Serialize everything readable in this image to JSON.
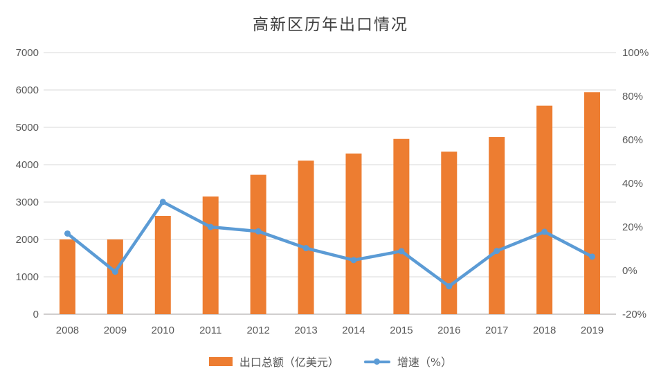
{
  "chart_data": {
    "type": "combo",
    "title": "高新区历年出口情况",
    "categories": [
      "2008",
      "2009",
      "2010",
      "2011",
      "2012",
      "2013",
      "2014",
      "2015",
      "2016",
      "2017",
      "2018",
      "2019"
    ],
    "series": [
      {
        "name": "出口总额（亿美元）",
        "type": "bar",
        "axis": "left",
        "color": "#ED7D31",
        "values": [
          2000,
          2000,
          2630,
          3150,
          3730,
          4110,
          4300,
          4690,
          4350,
          4740,
          5580,
          5940
        ]
      },
      {
        "name": "增速（%）",
        "type": "line",
        "axis": "right",
        "color": "#5B9BD5",
        "values": [
          17,
          -0.5,
          31.5,
          20,
          18,
          10.3,
          4.8,
          8.9,
          -7.2,
          9,
          17.8,
          6.4
        ]
      }
    ],
    "left_axis": {
      "min": 0,
      "max": 7000,
      "step": 1000,
      "ticks": [
        "0",
        "1000",
        "2000",
        "3000",
        "4000",
        "5000",
        "6000",
        "7000"
      ]
    },
    "right_axis": {
      "min": -20,
      "max": 100,
      "step": 20,
      "ticks": [
        "-20%",
        "0%",
        "20%",
        "40%",
        "60%",
        "80%",
        "100%"
      ]
    },
    "grid": true,
    "legend_position": "bottom",
    "colors": {
      "grid": "#D9D9D9",
      "axis_line": "#D0CECE",
      "text": "#595959",
      "title_text": "#404040",
      "background": "#FFFFFF"
    }
  }
}
